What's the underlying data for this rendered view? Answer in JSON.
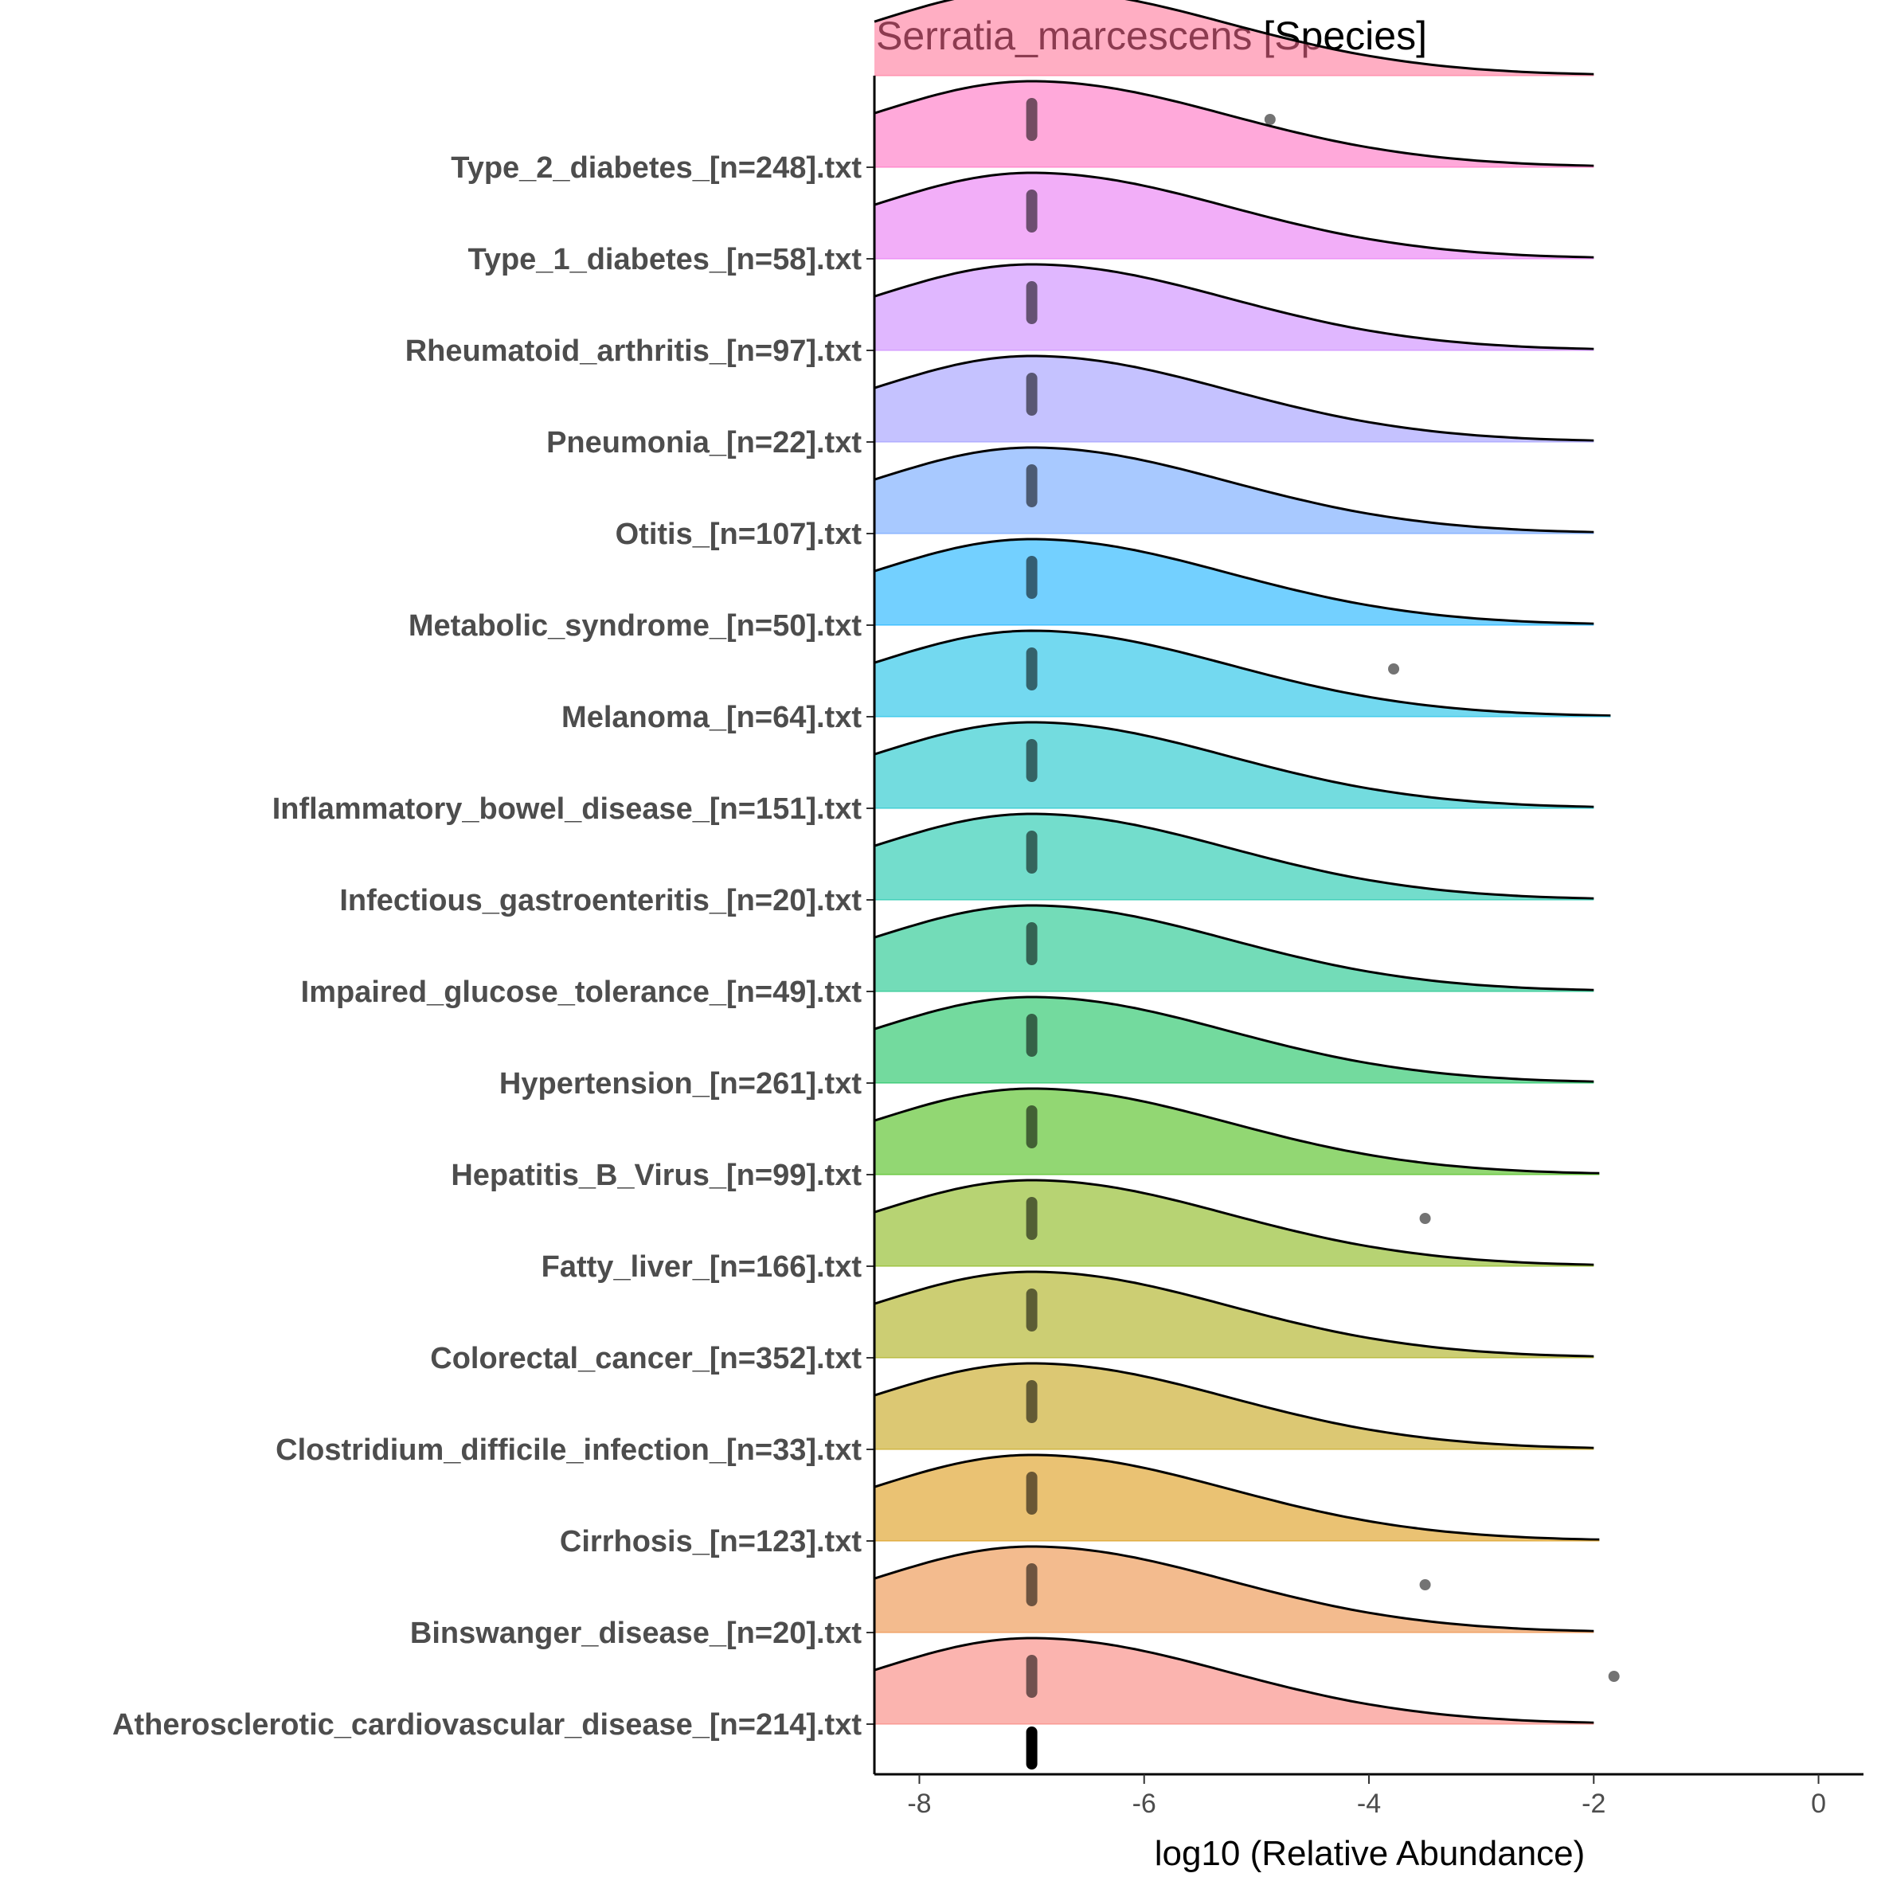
{
  "chart_data": {
    "type": "ridgeline",
    "title": "Serratia_marcescens [Species]",
    "xlabel": "log10 (Relative Abundance)",
    "ylabel": "",
    "xlim": [
      -8.4,
      0.4
    ],
    "xticks": [
      -8,
      -6,
      -4,
      -2,
      0
    ],
    "grid": false,
    "legend": "none",
    "categories": [
      "Atherosclerotic_cardiovascular_disease_[n=214].txt",
      "Binswanger_disease_[n=20].txt",
      "Cirrhosis_[n=123].txt",
      "Clostridium_difficile_infection_[n=33].txt",
      "Colorectal_cancer_[n=352].txt",
      "Fatty_liver_[n=166].txt",
      "Hepatitis_B_Virus_[n=99].txt",
      "Hypertension_[n=261].txt",
      "Impaired_glucose_tolerance_[n=49].txt",
      "Infectious_gastroenteritis_[n=20].txt",
      "Inflammatory_bowel_disease_[n=151].txt",
      "Melanoma_[n=64].txt",
      "Metabolic_syndrome_[n=50].txt",
      "Otitis_[n=107].txt",
      "Pneumonia_[n=22].txt",
      "Rheumatoid_arthritis_[n=97].txt",
      "Type_1_diabetes_[n=58].txt",
      "Type_2_diabetes_[n=248].txt"
    ],
    "series": [
      {
        "color": "#f8766d",
        "density_peak": -7.0,
        "density_end": -2.0,
        "points_main": -7.0,
        "outliers": [
          -1.82
        ]
      },
      {
        "color": "#ea8331",
        "density_peak": -7.0,
        "density_end": -2.0,
        "points_main": -7.0,
        "outliers": [
          -3.5
        ]
      },
      {
        "color": "#d89000",
        "density_peak": -7.0,
        "density_end": -1.95,
        "points_main": -7.0,
        "outliers": []
      },
      {
        "color": "#c09b00",
        "density_peak": -7.0,
        "density_end": -2.0,
        "points_main": -7.0,
        "outliers": []
      },
      {
        "color": "#a3a500",
        "density_peak": -7.0,
        "density_end": -2.0,
        "points_main": -7.0,
        "outliers": []
      },
      {
        "color": "#7cae00",
        "density_peak": -7.0,
        "density_end": -2.0,
        "points_main": -7.0,
        "outliers": [
          -3.5
        ]
      },
      {
        "color": "#39b600",
        "density_peak": -7.0,
        "density_end": -1.95,
        "points_main": -7.0,
        "outliers": []
      },
      {
        "color": "#00bb4e",
        "density_peak": -7.0,
        "density_end": -2.0,
        "points_main": -7.0,
        "outliers": []
      },
      {
        "color": "#00bf7d",
        "density_peak": -7.0,
        "density_end": -2.0,
        "points_main": -7.0,
        "outliers": []
      },
      {
        "color": "#00c1a3",
        "density_peak": -7.0,
        "density_end": -2.0,
        "points_main": -7.0,
        "outliers": []
      },
      {
        "color": "#00bfc4",
        "density_peak": -7.0,
        "density_end": -2.0,
        "points_main": -7.0,
        "outliers": []
      },
      {
        "color": "#00b9e3",
        "density_peak": -7.0,
        "density_end": -1.85,
        "points_main": -7.0,
        "outliers": [
          -3.78
        ]
      },
      {
        "color": "#00a9ff",
        "density_peak": -7.0,
        "density_end": -2.0,
        "points_main": -7.0,
        "outliers": []
      },
      {
        "color": "#619cff",
        "density_peak": -7.0,
        "density_end": -2.0,
        "points_main": -7.0,
        "outliers": []
      },
      {
        "color": "#9590ff",
        "density_peak": -7.0,
        "density_end": -2.0,
        "points_main": -7.0,
        "outliers": []
      },
      {
        "color": "#c77cff",
        "density_peak": -7.0,
        "density_end": -2.0,
        "points_main": -7.0,
        "outliers": []
      },
      {
        "color": "#e76bf3",
        "density_peak": -7.0,
        "density_end": -2.0,
        "points_main": -7.0,
        "outliers": []
      },
      {
        "color": "#ff62bc",
        "density_peak": -7.0,
        "density_end": -2.0,
        "points_main": -7.0,
        "outliers": [
          -4.88
        ]
      }
    ],
    "extra_top_ridge_color": "#ff6c91"
  }
}
